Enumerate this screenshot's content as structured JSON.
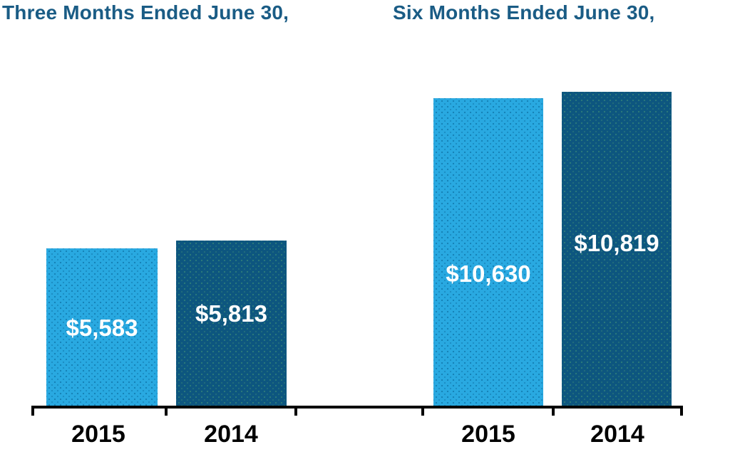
{
  "titles": {
    "left": "Three Months Ended June 30,",
    "right": "Six Months Ended June 30,"
  },
  "chart_data": {
    "type": "bar",
    "groups": [
      {
        "title": "Three Months Ended June 30,",
        "categories": [
          "2015",
          "2014"
        ],
        "values": [
          5583,
          5813
        ],
        "labels": [
          "$5,583",
          "$5,813"
        ]
      },
      {
        "title": "Six Months Ended June 30,",
        "categories": [
          "2015",
          "2014"
        ],
        "values": [
          10630,
          10819
        ],
        "labels": [
          "$10,630",
          "$10,819"
        ]
      }
    ],
    "series_colors": {
      "2015": "#29a9e1",
      "2014": "#0d567f"
    },
    "title_color": "#1a5c85",
    "value_label_color": "#ffffff",
    "axis_color": "#000000",
    "ylim": [
      0,
      11000
    ],
    "grid": "off",
    "y_axis": "hidden",
    "legend": "none",
    "value_labels_position": "inside-bar"
  },
  "bars": [
    {
      "group": "three-months",
      "year": "2015",
      "label": "$5,583",
      "value": 5583
    },
    {
      "group": "three-months",
      "year": "2014",
      "label": "$5,813",
      "value": 5813
    },
    {
      "group": "six-months",
      "year": "2015",
      "label": "$10,630",
      "value": 10630
    },
    {
      "group": "six-months",
      "year": "2014",
      "label": "$10,819",
      "value": 10819
    }
  ],
  "x_axis": {
    "labels": [
      "2015",
      "2014",
      "2015",
      "2014"
    ]
  }
}
